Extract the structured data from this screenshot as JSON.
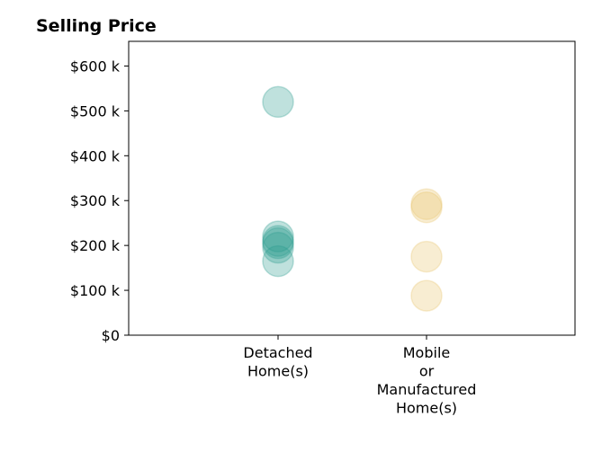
{
  "chart_data": {
    "type": "scatter",
    "title": "Selling Price",
    "xlabel": "",
    "ylabel": "",
    "categories": [
      [
        "Detached",
        "Home(s)"
      ],
      [
        "Mobile",
        "or",
        "Manufactured",
        "Home(s)"
      ]
    ],
    "yticks": [
      0,
      100,
      200,
      300,
      400,
      500,
      600
    ],
    "ytick_labels": [
      "$0",
      "$100 k",
      "$200 k",
      "$300 k",
      "$400 k",
      "$500 k",
      "$600 k"
    ],
    "ylim": [
      0,
      655
    ],
    "grid": false,
    "series": [
      {
        "category_index": 0,
        "color": "#2a9d8f",
        "values": [
          520,
          220,
          210,
          205,
          195,
          165
        ]
      },
      {
        "category_index": 1,
        "color": "#e9c46a",
        "values": [
          292,
          285,
          175,
          88
        ]
      }
    ]
  }
}
